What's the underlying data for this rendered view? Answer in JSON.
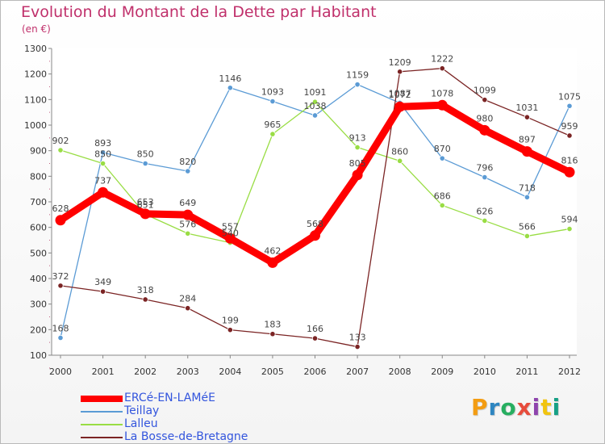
{
  "header": {
    "title": "Evolution du Montant de la Dette par Habitant",
    "unit": "(en €)"
  },
  "brand": {
    "letters": [
      "P",
      "r",
      "o",
      "x",
      "i",
      "t",
      "i"
    ],
    "colors": [
      "#f39c12",
      "#2e86c1",
      "#27ae60",
      "#e74c3c",
      "#8e44ad",
      "#f1c40f",
      "#16a085"
    ]
  },
  "chart_data": {
    "type": "line",
    "title": "Evolution du Montant de la Dette par Habitant",
    "ylabel": "(en €)",
    "xlabel": "",
    "x": [
      "2000",
      "2001",
      "2002",
      "2003",
      "2004",
      "2005",
      "2006",
      "2007",
      "2008",
      "2009",
      "2010",
      "2011",
      "2012"
    ],
    "ylim": [
      100,
      1300
    ],
    "yticks": [
      100,
      200,
      300,
      400,
      500,
      600,
      700,
      800,
      900,
      1000,
      1100,
      1200,
      1300
    ],
    "grid": false,
    "legend": "bottom-left",
    "series": [
      {
        "name": "ERCé-EN-LAMéE",
        "color": "#ff0000",
        "values": [
          628,
          737,
          653,
          649,
          557,
          462,
          568,
          805,
          1072,
          1078,
          980,
          897,
          816
        ]
      },
      {
        "name": "Teillay",
        "color": "#5b9bd5",
        "values": [
          168,
          893,
          850,
          820,
          1146,
          1093,
          1038,
          1159,
          1087,
          870,
          796,
          718,
          1075
        ]
      },
      {
        "name": "Lalleu",
        "color": "#99dd44",
        "values": [
          902,
          850,
          651,
          576,
          540,
          965,
          1091,
          913,
          860,
          686,
          626,
          566,
          594
        ]
      },
      {
        "name": "La Bosse-de-Bretagne",
        "color": "#7b2424",
        "values": [
          372,
          349,
          318,
          284,
          199,
          183,
          166,
          133,
          1209,
          1222,
          1099,
          1031,
          959
        ]
      }
    ]
  }
}
